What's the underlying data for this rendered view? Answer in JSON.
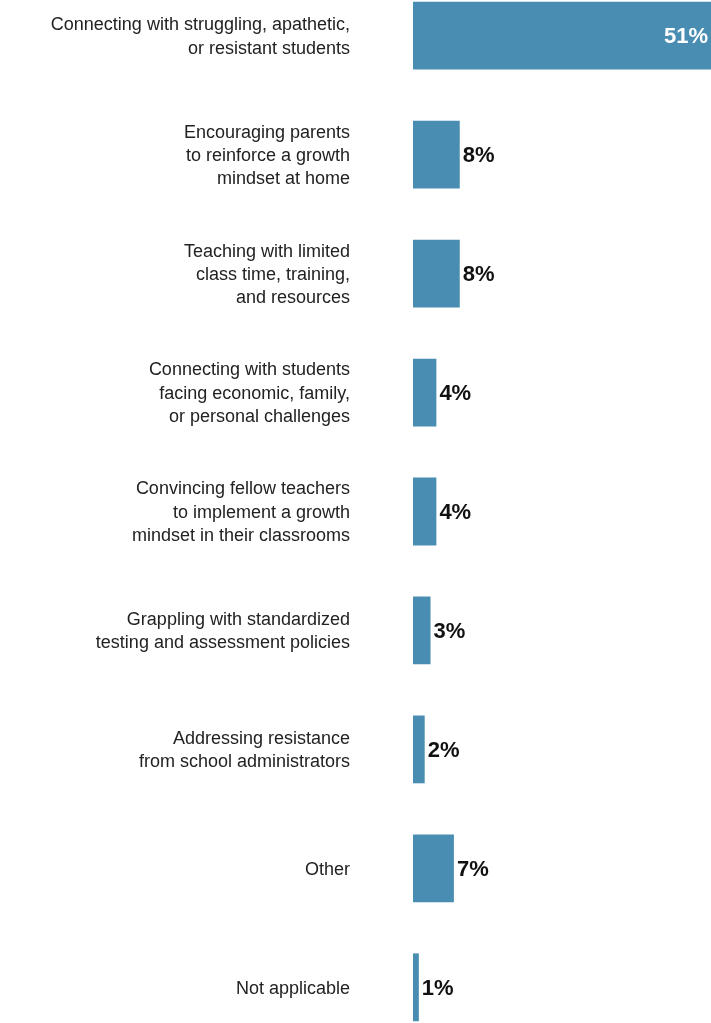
{
  "chart_data": {
    "type": "bar",
    "orientation": "horizontal",
    "categories": [
      "Connecting with struggling, apathetic,\nor resistant students",
      "Encouraging parents\nto reinforce a growth\nmindset at home",
      "Teaching with limited\nclass time, training,\nand resources",
      "Connecting with students\nfacing economic, family,\nor personal challenges",
      "Convincing fellow teachers\nto implement a growth\nmindset in their classrooms",
      "Grappling with standardized\ntesting and assessment policies",
      "Addressing resistance\nfrom school administrators",
      "Other",
      "Not applicable"
    ],
    "values": [
      51,
      8,
      8,
      4,
      4,
      3,
      2,
      7,
      1
    ],
    "value_labels": [
      "51%",
      "8%",
      "8%",
      "4%",
      "4%",
      "3%",
      "2%",
      "7%",
      "1%"
    ],
    "color": "#4a8db2"
  }
}
